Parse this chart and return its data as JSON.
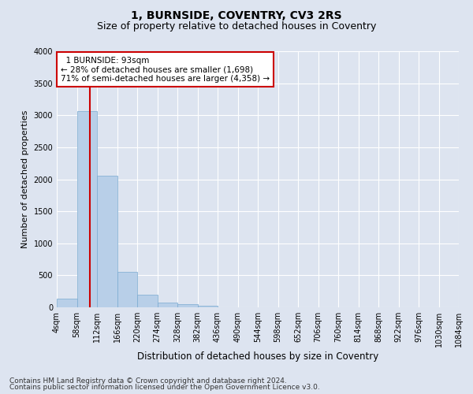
{
  "title": "1, BURNSIDE, COVENTRY, CV3 2RS",
  "subtitle": "Size of property relative to detached houses in Coventry",
  "xlabel": "Distribution of detached houses by size in Coventry",
  "ylabel": "Number of detached properties",
  "footer_line1": "Contains HM Land Registry data © Crown copyright and database right 2024.",
  "footer_line2": "Contains public sector information licensed under the Open Government Licence v3.0.",
  "annotation_line1": "  1 BURNSIDE: 93sqm  ",
  "annotation_line2": "← 28% of detached houses are smaller (1,698)",
  "annotation_line3": "71% of semi-detached houses are larger (4,358) →",
  "bar_color": "#b8cfe8",
  "bar_edge_color": "#7aaad0",
  "vline_color": "#cc0000",
  "vline_x": 93,
  "annotation_box_edgecolor": "#cc0000",
  "background_color": "#dde4f0",
  "grid_color": "#ffffff",
  "ylim": [
    0,
    4000
  ],
  "bin_edges": [
    4,
    58,
    112,
    166,
    220,
    274,
    328,
    382,
    436,
    490,
    544,
    598,
    652,
    706,
    760,
    814,
    868,
    922,
    976,
    1030,
    1084
  ],
  "bar_heights": [
    130,
    3060,
    2060,
    560,
    195,
    75,
    50,
    30,
    0,
    0,
    0,
    0,
    0,
    0,
    0,
    0,
    0,
    0,
    0,
    0
  ],
  "tick_labels": [
    "4sqm",
    "58sqm",
    "112sqm",
    "166sqm",
    "220sqm",
    "274sqm",
    "328sqm",
    "382sqm",
    "436sqm",
    "490sqm",
    "544sqm",
    "598sqm",
    "652sqm",
    "706sqm",
    "760sqm",
    "814sqm",
    "868sqm",
    "922sqm",
    "976sqm",
    "1030sqm",
    "1084sqm"
  ],
  "title_fontsize": 10,
  "subtitle_fontsize": 9,
  "axis_label_fontsize": 8.5,
  "tick_fontsize": 7,
  "annotation_fontsize": 7.5,
  "footer_fontsize": 6.5,
  "ylabel_fontsize": 8
}
